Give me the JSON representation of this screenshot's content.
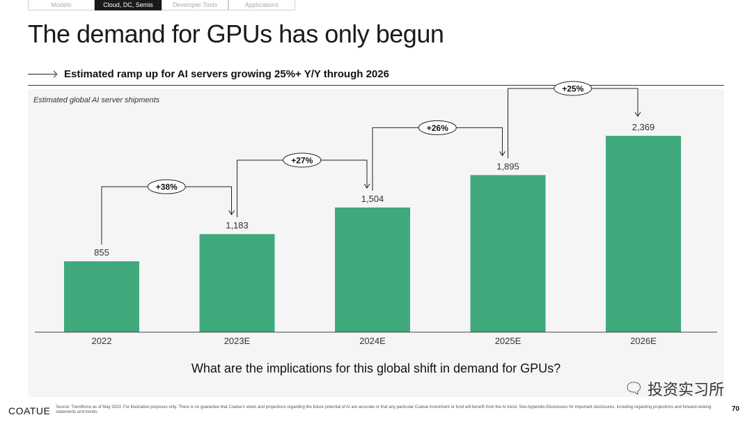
{
  "tabs": [
    {
      "label": "Models",
      "active": false
    },
    {
      "label": "Cloud, DC, Semis",
      "active": true
    },
    {
      "label": "Developer Tools",
      "active": false
    },
    {
      "label": "Applications",
      "active": false
    }
  ],
  "title": "The demand for GPUs has only begun",
  "subtitle": "Estimated ramp up for AI servers growing 25%+ Y/Y through 2026",
  "colors": {
    "bar": "#3fa97c",
    "text": "#111111"
  },
  "chart_data": {
    "type": "bar",
    "title": "Estimated global AI server shipments",
    "categories": [
      "2022",
      "2023E",
      "2024E",
      "2025E",
      "2026E"
    ],
    "values": [
      855,
      1183,
      1504,
      1895,
      2369
    ],
    "value_labels": [
      "855",
      "1,183",
      "1,504",
      "1,895",
      "2,369"
    ],
    "growth_labels": [
      "+38%",
      "+27%",
      "+26%",
      "+25%"
    ],
    "ylim": [
      0,
      2369
    ],
    "xlabel": "",
    "ylabel": ""
  },
  "question": "What are the implications for this global shift in demand for GPUs?",
  "watermark": {
    "text": "投资实习所",
    "icon": "wechat-icon"
  },
  "footer": {
    "logo": "COATUE",
    "source": "Source: Trendforce as of May 2023. For illustrative purposes only. There is no guarantee that Coatue's views and projections regarding the future potential of AI are accurate or that any particular Coatue investment or fund will benefit from the AI trend. See Appendix-Disclosures for important disclosures, including regarding projections and forward-looking statements and trends.",
    "page_number": "70"
  }
}
